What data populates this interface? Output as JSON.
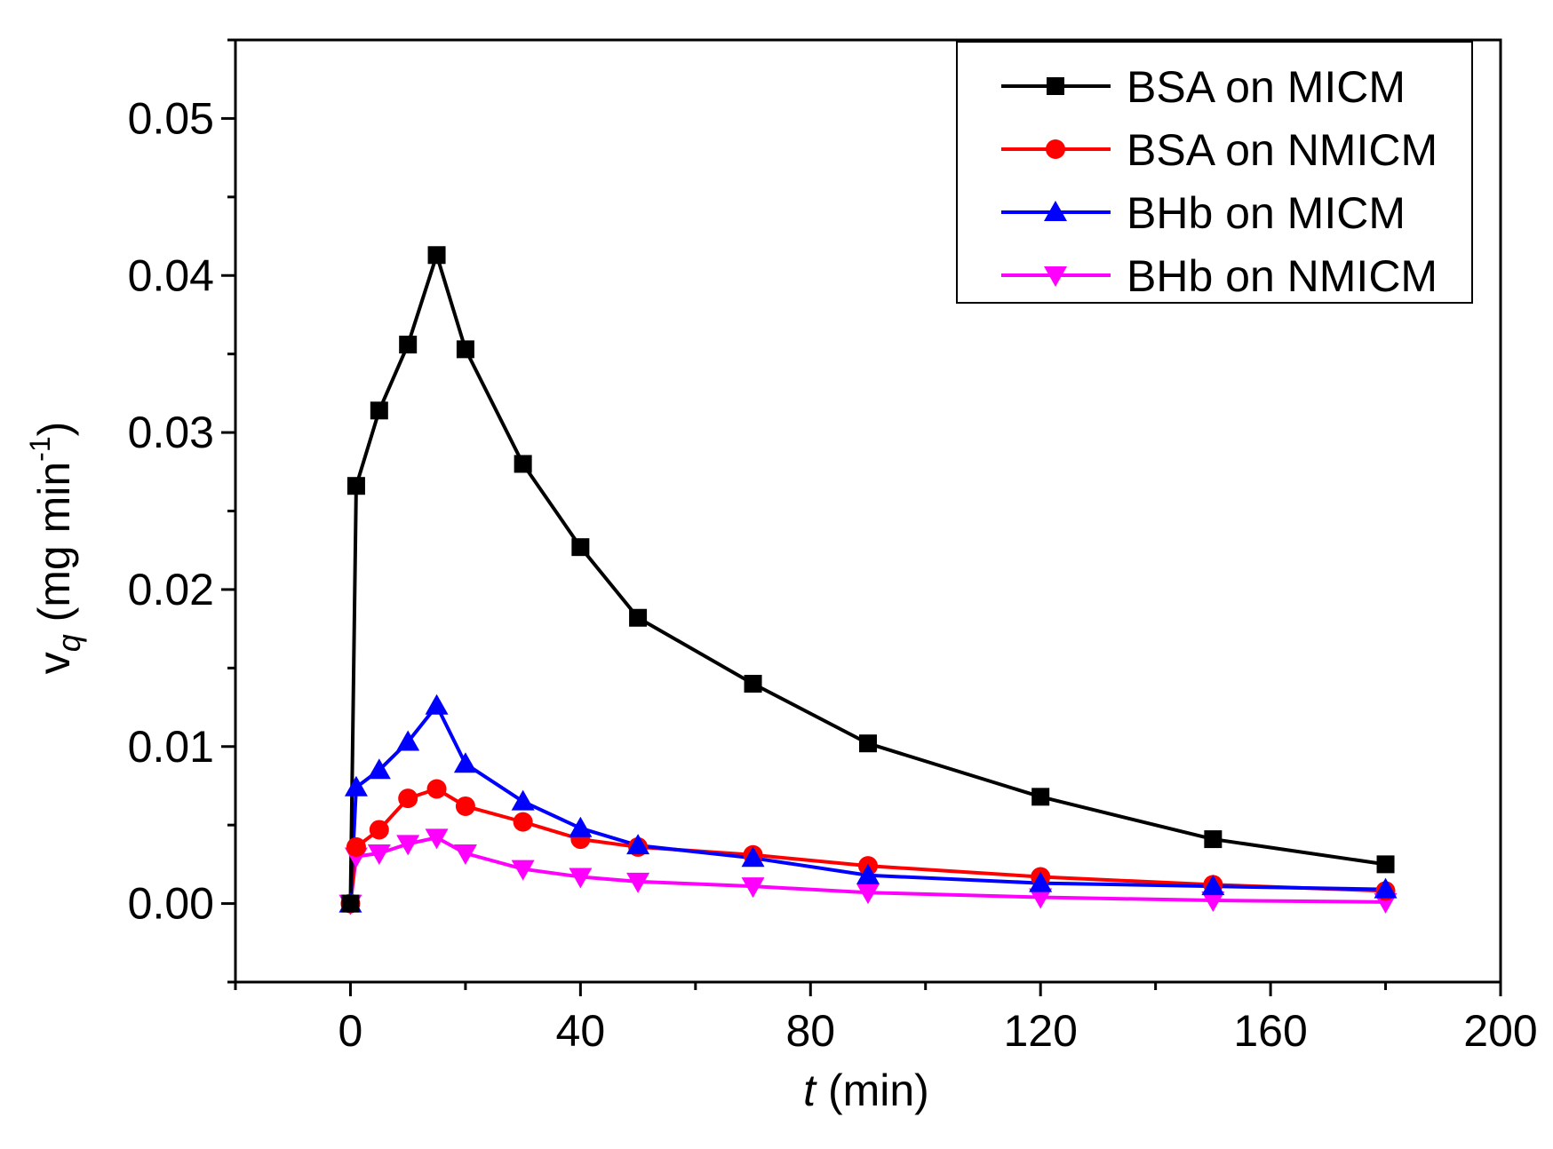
{
  "chart_data": {
    "type": "line",
    "title": "",
    "xlabel": {
      "italic": "t",
      "rest": " (min)"
    },
    "ylabel": {
      "base": "v",
      "sub": "q",
      "units": " (mg min",
      "sup": "-1",
      "close": ")"
    },
    "xlim": [
      -20,
      200
    ],
    "ylim": [
      -0.005,
      0.055
    ],
    "xticks": [
      0,
      40,
      80,
      120,
      160,
      200
    ],
    "xtick_labels": [
      "0",
      "40",
      "80",
      "120",
      "160",
      "200"
    ],
    "yticks": [
      0.0,
      0.01,
      0.02,
      0.03,
      0.04,
      0.05
    ],
    "ytick_labels": [
      "0.00",
      "0.01",
      "0.02",
      "0.03",
      "0.04",
      "0.05"
    ],
    "legend_position": "top-right",
    "x": [
      0,
      1,
      5,
      10,
      15,
      20,
      30,
      40,
      50,
      70,
      90,
      120,
      150,
      180
    ],
    "series": [
      {
        "name": "BSA on MICM",
        "color": "#000000",
        "marker": "square",
        "values": [
          0,
          0.0266,
          0.0314,
          0.0356,
          0.0413,
          0.0353,
          0.028,
          0.0227,
          0.0182,
          0.014,
          0.0102,
          0.0068,
          0.0041,
          0.0025
        ]
      },
      {
        "name": "BSA on NMICM",
        "color": "#ff0000",
        "marker": "circle",
        "values": [
          0,
          0.0036,
          0.0047,
          0.0067,
          0.0073,
          0.0062,
          0.0052,
          0.0041,
          0.0036,
          0.0031,
          0.0024,
          0.0017,
          0.0012,
          0.0008
        ]
      },
      {
        "name": "BHb on MICM",
        "color": "#0000ff",
        "marker": "triangle-up",
        "values": [
          0,
          0.0074,
          0.0085,
          0.0103,
          0.0126,
          0.0089,
          0.0065,
          0.0048,
          0.0037,
          0.0029,
          0.0018,
          0.0013,
          0.0011,
          0.0009
        ]
      },
      {
        "name": "BHb on NMICM",
        "color": "#ff00ff",
        "marker": "triangle-down",
        "values": [
          0,
          0.003,
          0.0032,
          0.0038,
          0.0042,
          0.0032,
          0.0022,
          0.0017,
          0.0014,
          0.0011,
          0.0007,
          0.0004,
          0.0002,
          0.0001
        ]
      }
    ]
  }
}
